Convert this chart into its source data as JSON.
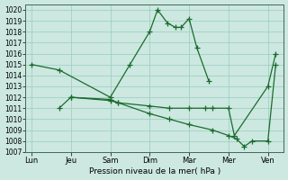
{
  "background_color": "#cce8e0",
  "grid_color": "#99ccbb",
  "line_color": "#1a6b2e",
  "xlabel": "Pression niveau de la mer( hPa )",
  "ylim": [
    1007,
    1020.5
  ],
  "yticks": [
    1007,
    1008,
    1009,
    1010,
    1011,
    1012,
    1013,
    1014,
    1015,
    1016,
    1017,
    1018,
    1019,
    1020
  ],
  "xtick_labels": [
    "Lun",
    "Jeu",
    "Sam",
    "Dim",
    "Mar",
    "Mer",
    "Ven"
  ],
  "xtick_positions": [
    0,
    1,
    2,
    3,
    4,
    5,
    6
  ],
  "xlim": [
    -0.15,
    6.4
  ],
  "series": [
    {
      "x": [
        0,
        0.7,
        2,
        2.5,
        3,
        3.2,
        3.45,
        3.65,
        3.8,
        4,
        4.2,
        4.5
      ],
      "y": [
        1015,
        1014.5,
        1012,
        1015,
        1018,
        1020,
        1018.8,
        1018.4,
        1018.4,
        1019.2,
        1016.5,
        1013.5
      ]
    },
    {
      "x": [
        0.7,
        1,
        2,
        2.2,
        3,
        3.5,
        4,
        4.4,
        4.6,
        5,
        5.15,
        6,
        6.2
      ],
      "y": [
        1011,
        1012,
        1011.7,
        1011.5,
        1011.2,
        1011,
        1011,
        1011,
        1011,
        1011,
        1008.5,
        1013,
        1016
      ]
    },
    {
      "x": [
        1,
        2,
        2.2,
        3,
        3.5,
        4,
        4.6,
        5,
        5.2,
        5.4,
        5.6,
        6,
        6.2
      ],
      "y": [
        1012,
        1011.8,
        1011.5,
        1010.5,
        1010,
        1009.5,
        1009,
        1008.5,
        1008.2,
        1007.5,
        1008,
        1008,
        1015
      ]
    }
  ]
}
